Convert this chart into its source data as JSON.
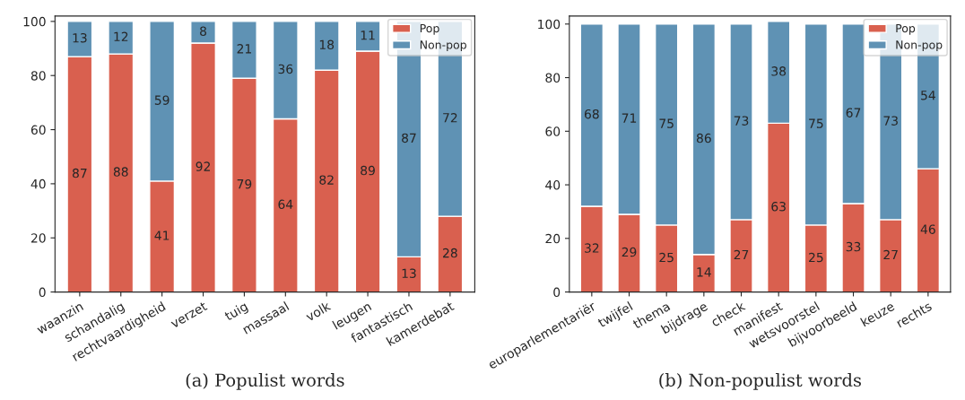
{
  "chart_data": [
    {
      "type": "bar",
      "title": "(a) Populist words",
      "stacked": true,
      "data_labels": true,
      "legend": "top right",
      "grid": false,
      "categories": [
        "waanzin",
        "schandalig",
        "rechtvaardigheid",
        "verzet",
        "tuig",
        "massaal",
        "volk",
        "leugen",
        "fantastisch",
        "kamerdebat"
      ],
      "series": [
        {
          "name": "Pop",
          "color": "#d9604f",
          "values": [
            87,
            88,
            41,
            92,
            79,
            64,
            82,
            89,
            13,
            28
          ]
        },
        {
          "name": "Non-pop",
          "color": "#5f92b4",
          "values": [
            13,
            12,
            59,
            8,
            21,
            36,
            18,
            11,
            87,
            72
          ]
        }
      ],
      "ylim": [
        0,
        102
      ],
      "yticks": [
        0,
        20,
        40,
        60,
        80,
        100
      ]
    },
    {
      "type": "bar",
      "title": "(b) Non-populist words",
      "stacked": true,
      "data_labels": true,
      "legend": "top right",
      "grid": false,
      "categories": [
        "europarlementariër",
        "twijfel",
        "thema",
        "bijdrage",
        "check",
        "manifest",
        "wetsvoorstel",
        "bijvoorbeeld",
        "keuze",
        "rechts"
      ],
      "series": [
        {
          "name": "Pop",
          "color": "#d9604f",
          "values": [
            32,
            29,
            25,
            14,
            27,
            63,
            25,
            33,
            27,
            46
          ]
        },
        {
          "name": "Non-pop",
          "color": "#5f92b4",
          "values": [
            68,
            71,
            75,
            86,
            73,
            38,
            75,
            67,
            73,
            54
          ]
        }
      ],
      "ylim": [
        0,
        103
      ],
      "yticks": [
        0,
        20,
        40,
        60,
        80,
        100
      ]
    }
  ]
}
